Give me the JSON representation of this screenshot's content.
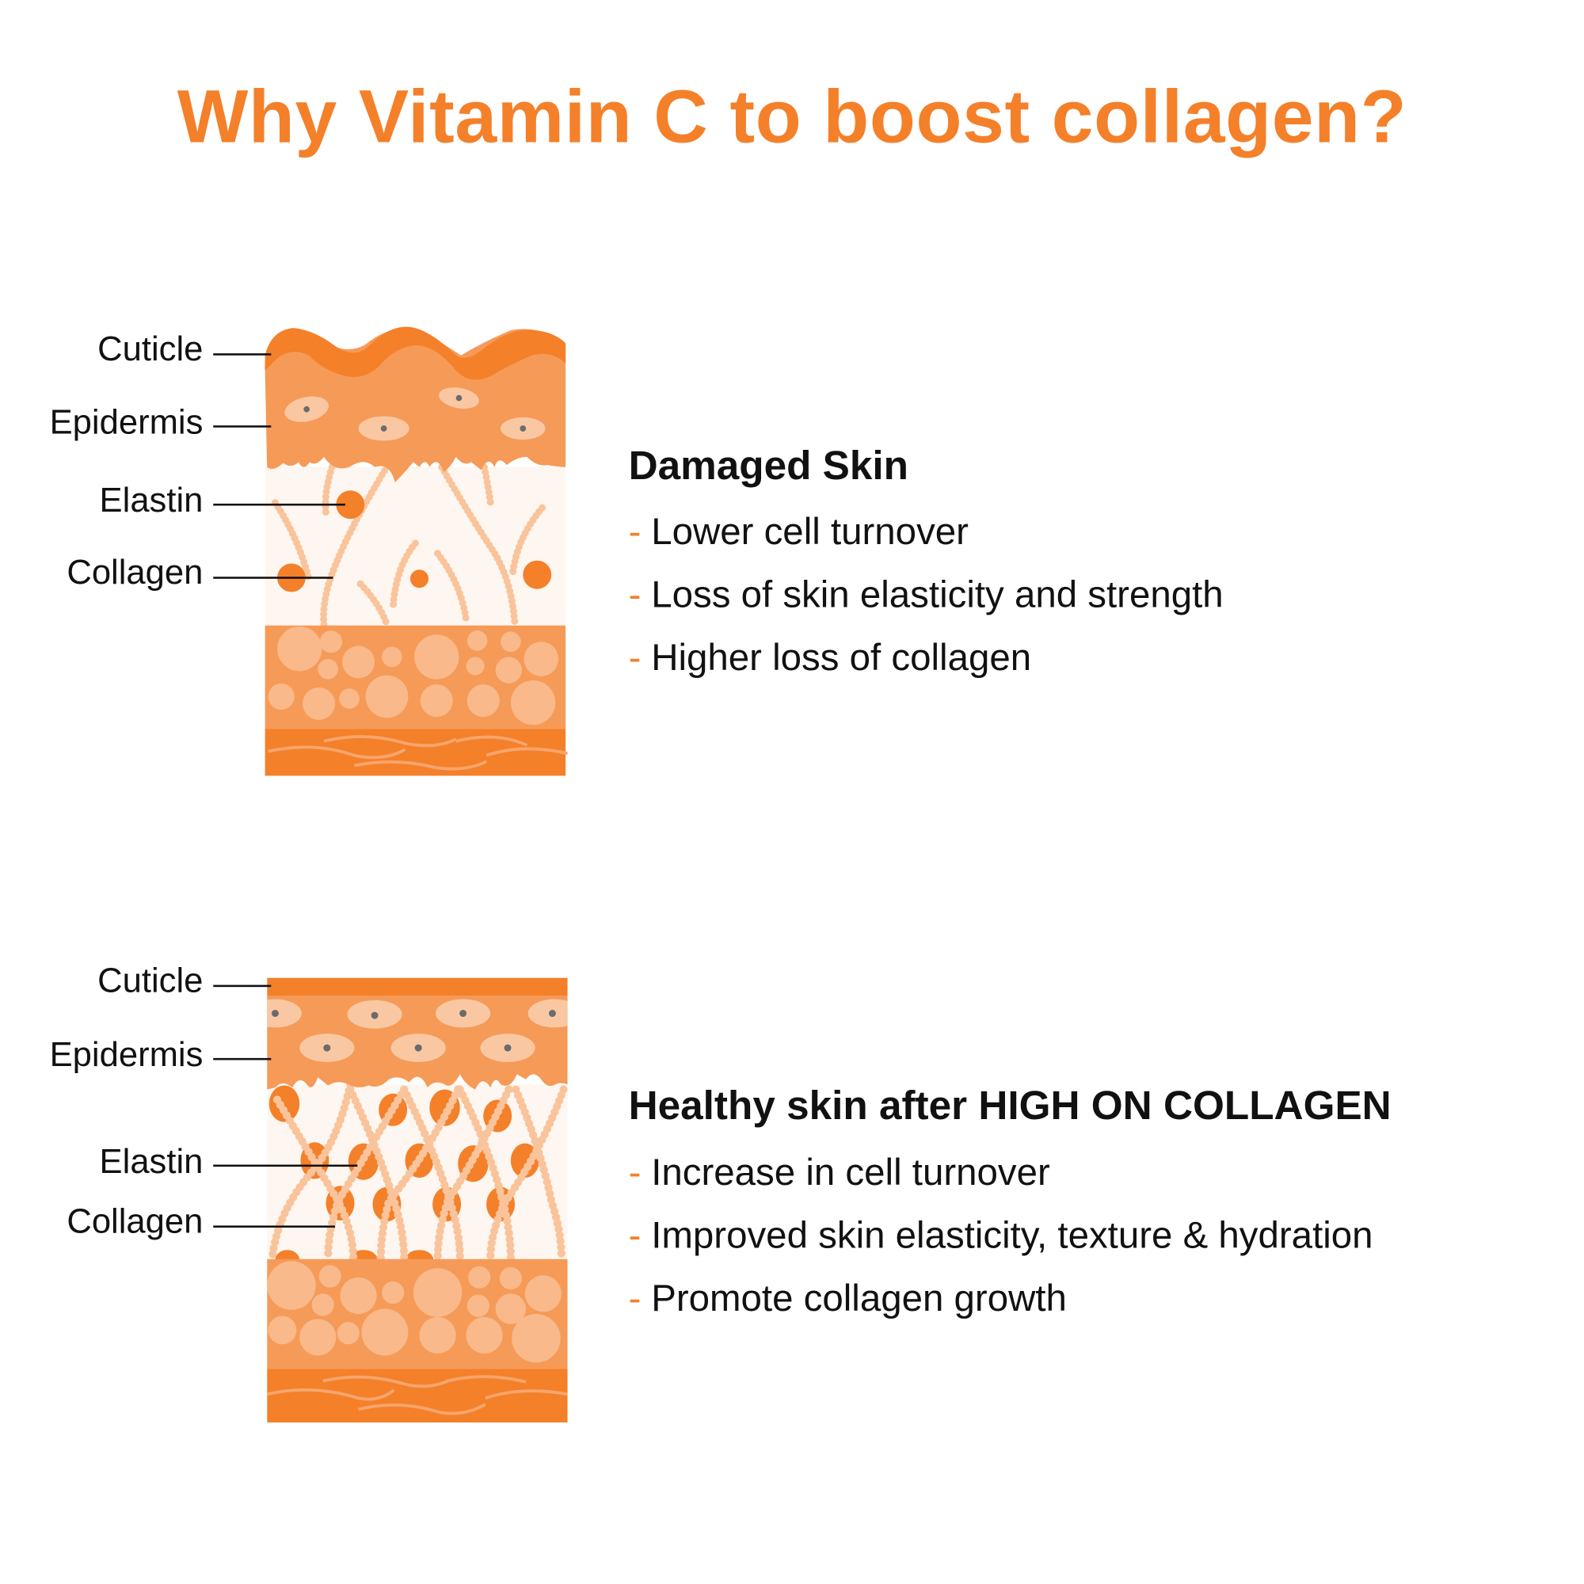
{
  "title": "Why Vitamin C to boost collagen?",
  "colors": {
    "accent": "#F4802A",
    "epidermis": "#F69A58",
    "dermis": "#FEF6F0",
    "fat_cells": "#F9B98A",
    "collagen": "#F9C49B"
  },
  "damaged": {
    "labels": {
      "cuticle": "Cuticle",
      "epidermis": "Epidermis",
      "elastin": "Elastin",
      "collagen": "Collagen"
    },
    "heading": "Damaged Skin",
    "bullet_marker": "-",
    "bullets": [
      "Lower cell turnover",
      "Loss of skin elasticity and strength",
      "Higher loss of collagen"
    ]
  },
  "healthy": {
    "labels": {
      "cuticle": "Cuticle",
      "epidermis": "Epidermis",
      "elastin": "Elastin",
      "collagen": "Collagen"
    },
    "heading": "Healthy skin after HIGH ON COLLAGEN",
    "bullet_marker": "-",
    "bullets": [
      "Increase in cell turnover",
      "Improved skin elasticity, texture & hydration",
      "Promote collagen growth"
    ]
  }
}
